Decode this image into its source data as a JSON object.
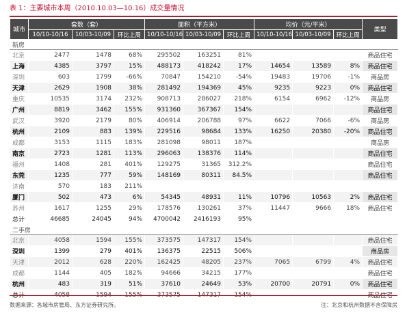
{
  "title": "表 1：主要城市本周（2010.10.03—10.16）成交量情况",
  "header": {
    "city": "城市",
    "units": "套数（套）",
    "area": "面积（平方米）",
    "price": "均价（元/平米）",
    "type": "类型",
    "cur": "10/10-10/16",
    "prev": "10/03-10/09",
    "chg": "环比上周"
  },
  "sections": [
    {
      "label": "新房",
      "rows": [
        {
          "city": "北京",
          "u1": "2477",
          "u2": "1478",
          "uc": "68%",
          "a1": "295502",
          "a2": "163251",
          "ac": "81%",
          "p1": "",
          "p2": "",
          "pc": "",
          "type": "商品住宅",
          "dark": false
        },
        {
          "city": "上海",
          "u1": "4385",
          "u2": "3797",
          "uc": "15%",
          "a1": "488173",
          "a2": "418242",
          "ac": "17%",
          "p1": "14654",
          "p2": "13589",
          "pc": "8%",
          "type": "商品住宅",
          "dark": true
        },
        {
          "city": "深圳",
          "u1": "603",
          "u2": "1799",
          "uc": "-66%",
          "a1": "70847",
          "a2": "154210",
          "ac": "-54%",
          "p1": "19483",
          "p2": "19706",
          "pc": "-1%",
          "type": "商品房",
          "dark": false
        },
        {
          "city": "天津",
          "u1": "2629",
          "u2": "1908",
          "uc": "38%",
          "a1": "281492",
          "a2": "194369",
          "ac": "45%",
          "p1": "9235",
          "p2": "9223",
          "pc": "0%",
          "type": "商品住宅",
          "dark": true
        },
        {
          "city": "重庆",
          "u1": "10535",
          "u2": "3174",
          "uc": "232%",
          "a1": "908713",
          "a2": "286027",
          "ac": "218%",
          "p1": "6154",
          "p2": "6962",
          "pc": "-12%",
          "type": "商品房",
          "dark": false
        },
        {
          "city": "广州",
          "u1": "8819",
          "u2": "3462",
          "uc": "155%",
          "a1": "931360",
          "a2": "367367",
          "ac": "154%",
          "p1": "",
          "p2": "",
          "pc": "",
          "type": "商品住宅",
          "dark": true
        },
        {
          "city": "武汉",
          "u1": "3920",
          "u2": "2179",
          "uc": "80%",
          "a1": "406914",
          "a2": "206788",
          "ac": "97%",
          "p1": "6622",
          "p2": "7066",
          "pc": "-6%",
          "type": "商品房",
          "dark": false
        },
        {
          "city": "杭州",
          "u1": "2109",
          "u2": "883",
          "uc": "139%",
          "a1": "229516",
          "a2": "98684",
          "ac": "133%",
          "p1": "16250",
          "p2": "20380",
          "pc": "-20%",
          "type": "商品住宅",
          "dark": true
        },
        {
          "city": "成都",
          "u1": "3153",
          "u2": "1115",
          "uc": "183%",
          "a1": "281098",
          "a2": "98011",
          "ac": "187%",
          "p1": "",
          "p2": "",
          "pc": "",
          "type": "商品房",
          "dark": false
        },
        {
          "city": "南京",
          "u1": "2723",
          "u2": "1281",
          "uc": "113%",
          "a1": "296063",
          "a2": "138376",
          "ac": "114%",
          "p1": "",
          "p2": "",
          "pc": "",
          "type": "商品住宅",
          "dark": true
        },
        {
          "city": "福州",
          "u1": "1408",
          "u2": "281",
          "uc": "401%",
          "a1": "129275",
          "a2": "31365",
          "ac": "312.2%",
          "p1": "",
          "p2": "",
          "pc": "",
          "type": "商品住宅",
          "dark": false
        },
        {
          "city": "东莞",
          "u1": "1235",
          "u2": "777",
          "uc": "59%",
          "a1": "148169",
          "a2": "80311",
          "ac": "84.5%",
          "p1": "",
          "p2": "",
          "pc": "",
          "type": "商品住宅",
          "dark": true
        },
        {
          "city": "济南",
          "u1": "570",
          "u2": "183",
          "uc": "211%",
          "a1": "",
          "a2": "",
          "ac": "",
          "p1": "",
          "p2": "",
          "pc": "",
          "type": "",
          "dark": false
        },
        {
          "city": "厦门",
          "u1": "502",
          "u2": "473",
          "uc": "6%",
          "a1": "54345",
          "a2": "48931",
          "ac": "11%",
          "p1": "10796",
          "p2": "10563",
          "pc": "2%",
          "type": "商品住宅",
          "dark": true
        },
        {
          "city": "苏州",
          "u1": "1617",
          "u2": "1255",
          "uc": "29%",
          "a1": "178576",
          "a2": "130261",
          "ac": "37%",
          "p1": "11447",
          "p2": "9666",
          "pc": "18%",
          "type": "商品住宅",
          "dark": false
        }
      ],
      "total": {
        "city": "总计",
        "u1": "46685",
        "u2": "24045",
        "uc": "94%",
        "a1": "4700042",
        "a2": "2416193",
        "ac": "95%",
        "p1": "",
        "p2": "",
        "pc": "",
        "type": ""
      }
    },
    {
      "label": "二手房",
      "rows": [
        {
          "city": "北京",
          "u1": "4058",
          "u2": "1594",
          "uc": "155%",
          "a1": "373575",
          "a2": "147317",
          "ac": "154%",
          "p1": "",
          "p2": "",
          "pc": "",
          "type": "商品住宅",
          "dark": false
        },
        {
          "city": "深圳",
          "u1": "1399",
          "u2": "279",
          "uc": "401%",
          "a1": "136375",
          "a2": "22515",
          "ac": "506%",
          "p1": "",
          "p2": "",
          "pc": "",
          "type": "商品房",
          "dark": true
        },
        {
          "city": "天津",
          "u1": "2012",
          "u2": "628",
          "uc": "220%",
          "a1": "162425",
          "a2": "48205",
          "ac": "237%",
          "p1": "7065",
          "p2": "6799",
          "pc": "4%",
          "type": "商品住宅",
          "dark": false
        },
        {
          "city": "成都",
          "u1": "1144",
          "u2": "405",
          "uc": "182%",
          "a1": "94666",
          "a2": "34215",
          "ac": "177%",
          "p1": "",
          "p2": "",
          "pc": "",
          "type": "商品住宅",
          "dark": false
        },
        {
          "city": "杭州",
          "u1": "483",
          "u2": "319",
          "uc": "51%",
          "a1": "37610",
          "a2": "24649",
          "ac": "53%",
          "p1": "20700",
          "p2": "20791",
          "pc": "0%",
          "type": "商品住宅",
          "dark": true
        }
      ],
      "total": {
        "city": "总计",
        "u1": "4058",
        "u2": "1594",
        "uc": "155%",
        "a1": "373575",
        "a2": "147317",
        "ac": "154%",
        "p1": "",
        "p2": "",
        "pc": "",
        "type": "商品住宅"
      }
    }
  ],
  "footer": {
    "source": "数据来源：各城市房管局、东方证券研究所。",
    "note": "注：北京和杭州数据不含保障房"
  }
}
